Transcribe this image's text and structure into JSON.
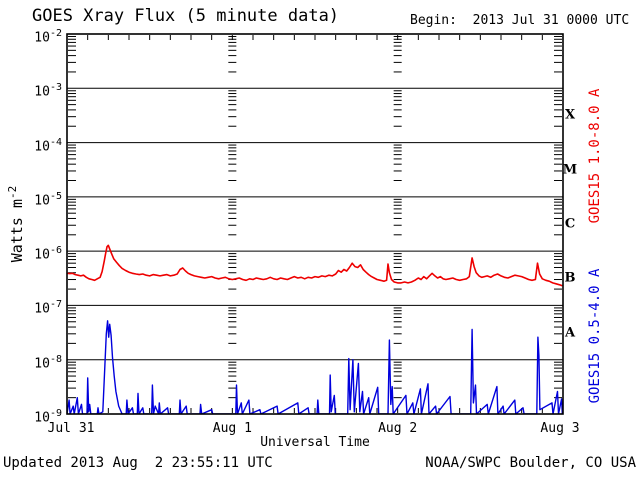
{
  "header": {
    "title": "GOES Xray Flux (5 minute data)",
    "begin": "Begin:  2013 Jul 31 0000 UTC"
  },
  "footer": {
    "updated": "Updated 2013 Aug  2 23:55:11 UTC",
    "source": "NOAA/SWPC Boulder, CO USA"
  },
  "chart_data": {
    "type": "line",
    "title": "GOES Xray Flux (5 minute data)",
    "xlabel": "Universal Time",
    "ylabel": "Watts m^-2",
    "ylabel_base": "Watts m",
    "ylabel_sup": "-2",
    "y_scale": "log",
    "ylim": [
      1e-09,
      0.01
    ],
    "y_tick_exponents": [
      -2,
      -3,
      -4,
      -5,
      -6,
      -7,
      -8,
      -9
    ],
    "x_range_hours": [
      0,
      72
    ],
    "x_ticks": [
      {
        "hour": 0,
        "label": "Jul 31"
      },
      {
        "hour": 24,
        "label": "Aug 1"
      },
      {
        "hour": 48,
        "label": "Aug 2"
      },
      {
        "hour": 72,
        "label": "Aug 3"
      }
    ],
    "flare_class_labels": [
      "X",
      "M",
      "C",
      "B",
      "A"
    ],
    "grid": {
      "horizontal_decade_lines": true,
      "day_boundary_tick_columns": true,
      "hour_tick_interval": 3
    },
    "series": [
      {
        "name": "GOES15 1.0-8.0 A",
        "color": "#ee0000",
        "flux_scale": 1e-07,
        "points": [
          [
            0,
            3.9
          ],
          [
            0.4,
            3.85
          ],
          [
            0.8,
            3.9
          ],
          [
            1.2,
            3.7
          ],
          [
            1.6,
            3.6
          ],
          [
            2,
            3.5
          ],
          [
            2.4,
            3.6
          ],
          [
            2.8,
            3.3
          ],
          [
            3.2,
            3.1
          ],
          [
            3.6,
            3
          ],
          [
            4,
            2.9
          ],
          [
            4.4,
            3.1
          ],
          [
            4.8,
            3.3
          ],
          [
            5.1,
            4.2
          ],
          [
            5.4,
            6.5
          ],
          [
            5.6,
            9
          ],
          [
            5.8,
            12
          ],
          [
            6,
            12.8
          ],
          [
            6.2,
            11
          ],
          [
            6.5,
            8.8
          ],
          [
            6.8,
            7.2
          ],
          [
            7.2,
            6.2
          ],
          [
            7.6,
            5.4
          ],
          [
            8,
            4.8
          ],
          [
            8.5,
            4.4
          ],
          [
            9,
            4.1
          ],
          [
            9.5,
            3.9
          ],
          [
            10,
            3.8
          ],
          [
            10.5,
            3.7
          ],
          [
            11,
            3.8
          ],
          [
            11.5,
            3.6
          ],
          [
            12,
            3.5
          ],
          [
            12.5,
            3.7
          ],
          [
            13,
            3.6
          ],
          [
            13.5,
            3.5
          ],
          [
            14,
            3.6
          ],
          [
            14.5,
            3.7
          ],
          [
            15,
            3.5
          ],
          [
            15.5,
            3.6
          ],
          [
            16,
            3.8
          ],
          [
            16.4,
            4.6
          ],
          [
            16.8,
            4.9
          ],
          [
            17.2,
            4.3
          ],
          [
            17.6,
            3.9
          ],
          [
            18,
            3.7
          ],
          [
            18.5,
            3.5
          ],
          [
            19,
            3.4
          ],
          [
            19.5,
            3.3
          ],
          [
            20,
            3.2
          ],
          [
            20.5,
            3.3
          ],
          [
            21,
            3.4
          ],
          [
            21.5,
            3.2
          ],
          [
            22,
            3.1
          ],
          [
            22.5,
            3.2
          ],
          [
            23,
            3.3
          ],
          [
            23.5,
            3.1
          ],
          [
            24,
            3
          ],
          [
            24.5,
            3.1
          ],
          [
            25,
            3.2
          ],
          [
            25.5,
            3
          ],
          [
            26,
            2.9
          ],
          [
            26.5,
            3.1
          ],
          [
            27,
            3
          ],
          [
            27.5,
            3.2
          ],
          [
            28,
            3.1
          ],
          [
            28.5,
            3
          ],
          [
            29,
            3.1
          ],
          [
            29.5,
            3.3
          ],
          [
            30,
            3.1
          ],
          [
            30.5,
            3
          ],
          [
            31,
            3.2
          ],
          [
            31.5,
            3.1
          ],
          [
            32,
            3
          ],
          [
            32.5,
            3.2
          ],
          [
            33,
            3.4
          ],
          [
            33.5,
            3.2
          ],
          [
            34,
            3.3
          ],
          [
            34.5,
            3.1
          ],
          [
            35,
            3.3
          ],
          [
            35.5,
            3.2
          ],
          [
            36,
            3.4
          ],
          [
            36.5,
            3.3
          ],
          [
            37,
            3.5
          ],
          [
            37.5,
            3.4
          ],
          [
            38,
            3.6
          ],
          [
            38.5,
            3.5
          ],
          [
            39,
            3.8
          ],
          [
            39.4,
            4.4
          ],
          [
            39.8,
            4.1
          ],
          [
            40.2,
            4.6
          ],
          [
            40.6,
            4.3
          ],
          [
            41,
            5
          ],
          [
            41.4,
            6
          ],
          [
            41.8,
            5.2
          ],
          [
            42.2,
            5
          ],
          [
            42.6,
            5.6
          ],
          [
            43,
            4.6
          ],
          [
            43.4,
            4.1
          ],
          [
            43.8,
            3.7
          ],
          [
            44.2,
            3.4
          ],
          [
            44.6,
            3.2
          ],
          [
            45,
            3
          ],
          [
            45.5,
            2.9
          ],
          [
            46,
            2.8
          ],
          [
            46.4,
            2.9
          ],
          [
            46.6,
            5.8
          ],
          [
            46.8,
            4
          ],
          [
            47.1,
            3
          ],
          [
            47.5,
            2.7
          ],
          [
            48,
            2.6
          ],
          [
            48.5,
            2.6
          ],
          [
            49,
            2.7
          ],
          [
            49.5,
            2.6
          ],
          [
            50,
            2.7
          ],
          [
            50.5,
            2.9
          ],
          [
            51,
            3.2
          ],
          [
            51.4,
            3
          ],
          [
            51.8,
            3.4
          ],
          [
            52.2,
            3.1
          ],
          [
            52.6,
            3.5
          ],
          [
            53,
            3.9
          ],
          [
            53.4,
            3.5
          ],
          [
            53.8,
            3.2
          ],
          [
            54.2,
            3.4
          ],
          [
            54.6,
            3.1
          ],
          [
            55,
            3
          ],
          [
            55.5,
            3.1
          ],
          [
            56,
            3.2
          ],
          [
            56.5,
            3
          ],
          [
            57,
            2.9
          ],
          [
            57.5,
            3
          ],
          [
            58,
            3.1
          ],
          [
            58.4,
            3.4
          ],
          [
            58.8,
            7.5
          ],
          [
            59.1,
            5.2
          ],
          [
            59.4,
            4
          ],
          [
            59.8,
            3.5
          ],
          [
            60.2,
            3.3
          ],
          [
            60.6,
            3.4
          ],
          [
            61,
            3.5
          ],
          [
            61.5,
            3.3
          ],
          [
            62,
            3.6
          ],
          [
            62.5,
            3.8
          ],
          [
            63,
            3.5
          ],
          [
            63.5,
            3.3
          ],
          [
            64,
            3.2
          ],
          [
            64.5,
            3.4
          ],
          [
            65,
            3.6
          ],
          [
            65.5,
            3.5
          ],
          [
            66,
            3.4
          ],
          [
            66.5,
            3.2
          ],
          [
            67,
            3
          ],
          [
            67.5,
            2.9
          ],
          [
            68,
            3
          ],
          [
            68.3,
            6
          ],
          [
            68.6,
            3.8
          ],
          [
            69,
            3.1
          ],
          [
            69.5,
            2.9
          ],
          [
            70,
            2.8
          ],
          [
            70.5,
            2.6
          ],
          [
            71,
            2.5
          ],
          [
            71.5,
            2.4
          ],
          [
            71.9,
            2.3
          ]
        ]
      },
      {
        "name": "GOES15 0.5-4.0 A",
        "color": "#0000dd",
        "flux_scale": 1e-09,
        "points": [
          [
            0,
            1
          ],
          [
            0.3,
            1.8
          ],
          [
            0.45,
            1
          ],
          [
            0.9,
            1.4
          ],
          [
            1.05,
            1
          ],
          [
            1.5,
            2
          ],
          [
            1.65,
            1
          ],
          [
            2.1,
            1.5
          ],
          [
            2.25,
            1
          ],
          [
            2.9,
            1
          ],
          [
            3,
            4.6
          ],
          [
            3.15,
            1.1
          ],
          [
            3.3,
            1.5
          ],
          [
            3.45,
            1
          ],
          [
            4.4,
            1
          ],
          [
            4.5,
            1.3
          ],
          [
            4.65,
            1
          ],
          [
            5.2,
            1.1
          ],
          [
            5.5,
            8
          ],
          [
            5.7,
            30
          ],
          [
            5.9,
            52
          ],
          [
            6.05,
            26
          ],
          [
            6.2,
            45
          ],
          [
            6.4,
            28
          ],
          [
            6.6,
            11
          ],
          [
            6.85,
            5
          ],
          [
            7.1,
            2.6
          ],
          [
            7.5,
            1.4
          ],
          [
            8,
            1
          ],
          [
            8.6,
            1
          ],
          [
            8.7,
            1.8
          ],
          [
            8.85,
            1
          ],
          [
            9.5,
            1.3
          ],
          [
            9.65,
            1
          ],
          [
            10.2,
            1
          ],
          [
            10.3,
            2.4
          ],
          [
            10.45,
            1
          ],
          [
            11,
            1.3
          ],
          [
            11.15,
            1
          ],
          [
            12.3,
            1
          ],
          [
            12.4,
            3.4
          ],
          [
            12.55,
            1
          ],
          [
            12.8,
            1.4
          ],
          [
            13.3,
            1
          ],
          [
            13.4,
            1.6
          ],
          [
            13.55,
            1
          ],
          [
            14.6,
            1.3
          ],
          [
            14.75,
            1
          ],
          [
            16.3,
            1
          ],
          [
            16.4,
            1.8
          ],
          [
            16.55,
            1
          ],
          [
            17.3,
            1.4
          ],
          [
            17.45,
            1
          ],
          [
            19.3,
            1
          ],
          [
            19.4,
            1.5
          ],
          [
            19.55,
            1
          ],
          [
            21,
            1.2
          ],
          [
            21.15,
            1
          ],
          [
            24.5,
            1
          ],
          [
            24.6,
            3.4
          ],
          [
            24.75,
            1
          ],
          [
            25.3,
            1.6
          ],
          [
            25.45,
            1
          ],
          [
            26.4,
            1.8
          ],
          [
            26.55,
            1
          ],
          [
            28,
            1.2
          ],
          [
            28.15,
            1
          ],
          [
            30.5,
            1.4
          ],
          [
            30.65,
            1
          ],
          [
            33.5,
            1.6
          ],
          [
            33.65,
            1
          ],
          [
            35,
            1.3
          ],
          [
            35.15,
            1
          ],
          [
            36.3,
            1
          ],
          [
            36.4,
            1.8
          ],
          [
            36.55,
            1
          ],
          [
            38.1,
            1
          ],
          [
            38.2,
            5.2
          ],
          [
            38.35,
            1.1
          ],
          [
            38.8,
            2.2
          ],
          [
            38.95,
            1
          ],
          [
            40.75,
            1
          ],
          [
            40.9,
            10.5
          ],
          [
            41.1,
            1.2
          ],
          [
            41.5,
            10
          ],
          [
            41.7,
            1.1
          ],
          [
            42.3,
            8.5
          ],
          [
            42.5,
            1.1
          ],
          [
            42.9,
            2.6
          ],
          [
            43.05,
            1
          ],
          [
            43.8,
            2
          ],
          [
            43.95,
            1
          ],
          [
            45.1,
            3.1
          ],
          [
            45.25,
            1
          ],
          [
            46.6,
            1
          ],
          [
            46.8,
            23
          ],
          [
            47,
            1.5
          ],
          [
            47.2,
            3.2
          ],
          [
            47.35,
            1
          ],
          [
            49.2,
            2.2
          ],
          [
            49.35,
            1
          ],
          [
            50.2,
            1.6
          ],
          [
            50.35,
            1
          ],
          [
            51.3,
            2.9
          ],
          [
            51.45,
            1
          ],
          [
            52.4,
            3.6
          ],
          [
            52.55,
            1
          ],
          [
            53.5,
            1.4
          ],
          [
            53.65,
            1
          ],
          [
            55.6,
            2.1
          ],
          [
            55.75,
            1
          ],
          [
            58.6,
            1
          ],
          [
            58.8,
            36
          ],
          [
            59,
            1.6
          ],
          [
            59.3,
            3.4
          ],
          [
            59.45,
            1
          ],
          [
            61,
            1.5
          ],
          [
            61.15,
            1
          ],
          [
            62.4,
            3.2
          ],
          [
            62.55,
            1
          ],
          [
            63.3,
            1.4
          ],
          [
            63.45,
            1
          ],
          [
            65,
            1.8
          ],
          [
            65.15,
            1
          ],
          [
            66.2,
            1.3
          ],
          [
            66.35,
            1
          ],
          [
            68.2,
            1
          ],
          [
            68.35,
            26
          ],
          [
            68.5,
            12
          ],
          [
            68.65,
            1.2
          ],
          [
            70.4,
            1.6
          ],
          [
            70.55,
            1
          ],
          [
            71.2,
            2.6
          ],
          [
            71.35,
            1
          ],
          [
            71.8,
            1.9
          ],
          [
            71.9,
            1
          ]
        ]
      }
    ]
  }
}
